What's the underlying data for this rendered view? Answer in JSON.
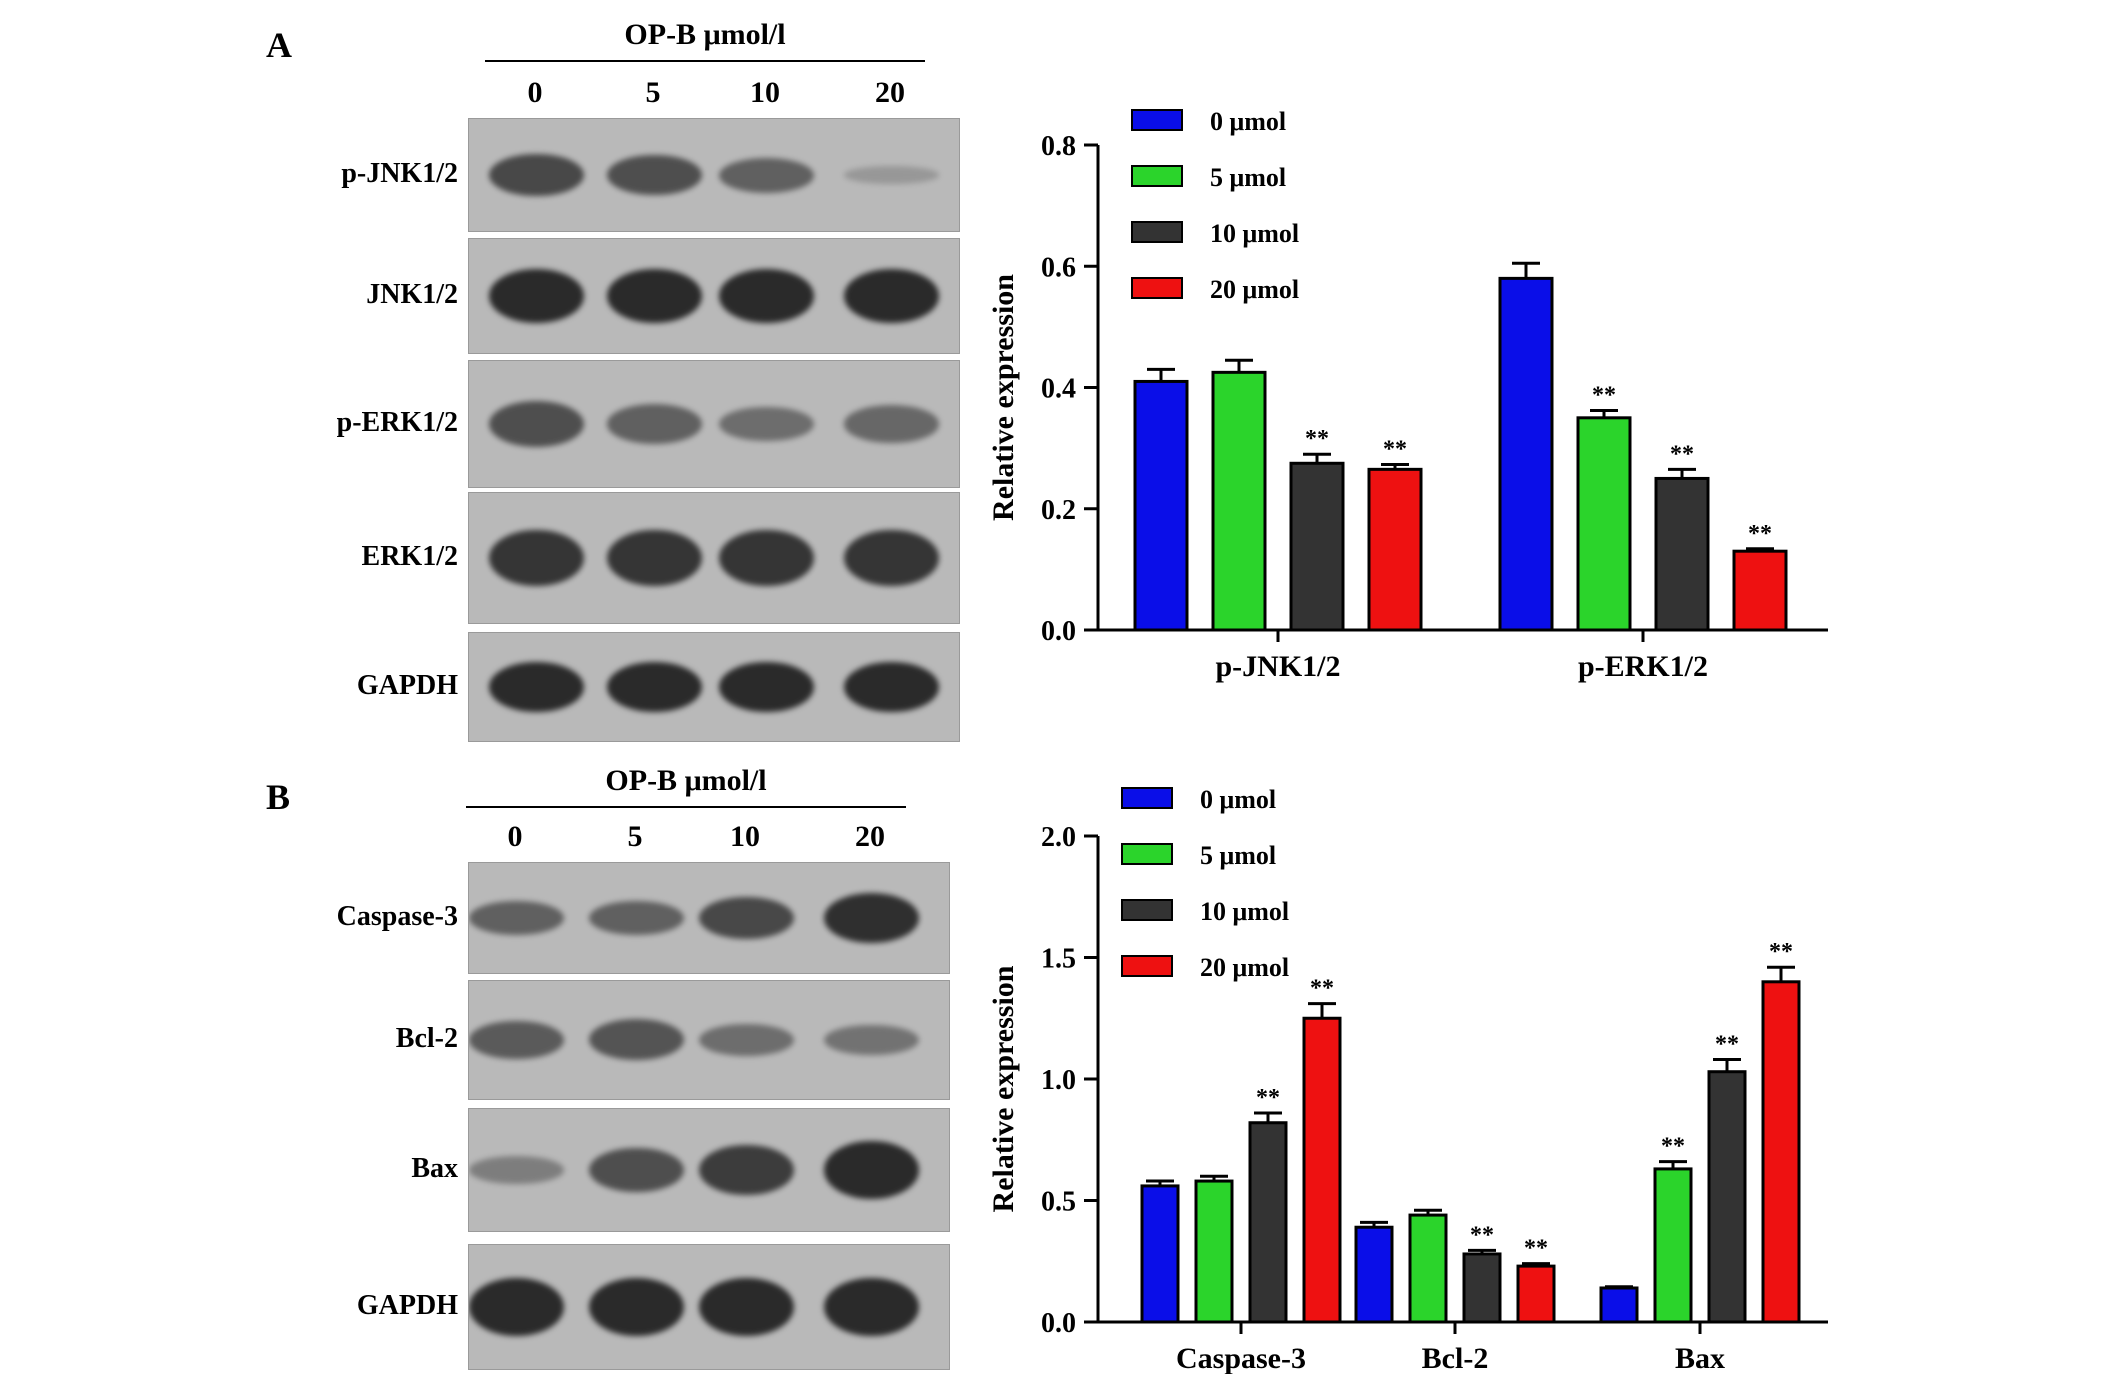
{
  "colors": {
    "0": "#0a0ee8",
    "5": "#2bd42b",
    "10": "#333333",
    "20": "#ee1111",
    "blot_bg": "#b9b9b9",
    "band": "#2a2a2a"
  },
  "panelA": {
    "letter": "A",
    "treatment_title": "OP-B μmol/l",
    "doses": [
      "0",
      "5",
      "10",
      "20"
    ],
    "blots": [
      {
        "label": "p-JNK1/2",
        "intensity": [
          0.75,
          0.7,
          0.55,
          0.1
        ]
      },
      {
        "label": "JNK1/2",
        "intensity": [
          1,
          1,
          1,
          1
        ]
      },
      {
        "label": "p-ERK1/2",
        "intensity": [
          0.7,
          0.55,
          0.45,
          0.5
        ]
      },
      {
        "label": "ERK1/2",
        "intensity": [
          0.9,
          0.9,
          0.9,
          0.9
        ]
      },
      {
        "label": "GAPDH",
        "intensity": [
          1,
          1,
          1,
          1
        ]
      }
    ]
  },
  "panelB": {
    "letter": "B",
    "treatment_title": "OP-B μmol/l",
    "doses": [
      "0",
      "5",
      "10",
      "20"
    ],
    "blots": [
      {
        "label": "Caspase-3",
        "intensity": [
          0.55,
          0.55,
          0.75,
          0.95
        ]
      },
      {
        "label": "Bcl-2",
        "intensity": [
          0.6,
          0.65,
          0.45,
          0.4
        ]
      },
      {
        "label": "Bax",
        "intensity": [
          0.3,
          0.7,
          0.85,
          1
        ]
      },
      {
        "label": "GAPDH",
        "intensity": [
          1,
          1,
          1,
          1
        ]
      }
    ]
  },
  "chart_data": [
    {
      "type": "bar",
      "ylabel": "Relative expression",
      "ylim": [
        0,
        0.8
      ],
      "yticks": [
        "0.0",
        "0.2",
        "0.4",
        "0.6",
        "0.8"
      ],
      "categories": [
        "p-JNK1/2",
        "p-ERK1/2"
      ],
      "legend_position": "top-left",
      "series": [
        {
          "name": "0 μmol",
          "values": [
            0.41,
            0.58
          ],
          "errors": [
            0.02,
            0.025
          ],
          "sig": [
            "",
            ""
          ]
        },
        {
          "name": "5 μmol",
          "values": [
            0.425,
            0.35
          ],
          "errors": [
            0.02,
            0.012
          ],
          "sig": [
            "",
            "**"
          ]
        },
        {
          "name": "10 μmol",
          "values": [
            0.275,
            0.25
          ],
          "errors": [
            0.015,
            0.015
          ],
          "sig": [
            "**",
            "**"
          ]
        },
        {
          "name": "20 μmol",
          "values": [
            0.265,
            0.13
          ],
          "errors": [
            0.008,
            0.004
          ],
          "sig": [
            "**",
            "**"
          ]
        }
      ]
    },
    {
      "type": "bar",
      "ylabel": "Relative expression",
      "ylim": [
        0,
        2.0
      ],
      "yticks": [
        "0.0",
        "0.5",
        "1.0",
        "1.5",
        "2.0"
      ],
      "categories": [
        "Caspase-3",
        "Bcl-2",
        "Bax"
      ],
      "legend_position": "top-left",
      "series": [
        {
          "name": "0 μmol",
          "values": [
            0.56,
            0.39,
            0.14
          ],
          "errors": [
            0.02,
            0.02,
            0.005
          ],
          "sig": [
            "",
            "",
            ""
          ]
        },
        {
          "name": "5 μmol",
          "values": [
            0.58,
            0.44,
            0.63
          ],
          "errors": [
            0.02,
            0.02,
            0.03
          ],
          "sig": [
            "",
            "",
            "**"
          ]
        },
        {
          "name": "10 μmol",
          "values": [
            0.82,
            0.28,
            1.03
          ],
          "errors": [
            0.04,
            0.015,
            0.05
          ],
          "sig": [
            "**",
            "**",
            "**"
          ]
        },
        {
          "name": "20 μmol",
          "values": [
            1.25,
            0.23,
            1.4
          ],
          "errors": [
            0.06,
            0.01,
            0.06
          ],
          "sig": [
            "**",
            "**",
            "**"
          ]
        }
      ]
    }
  ]
}
